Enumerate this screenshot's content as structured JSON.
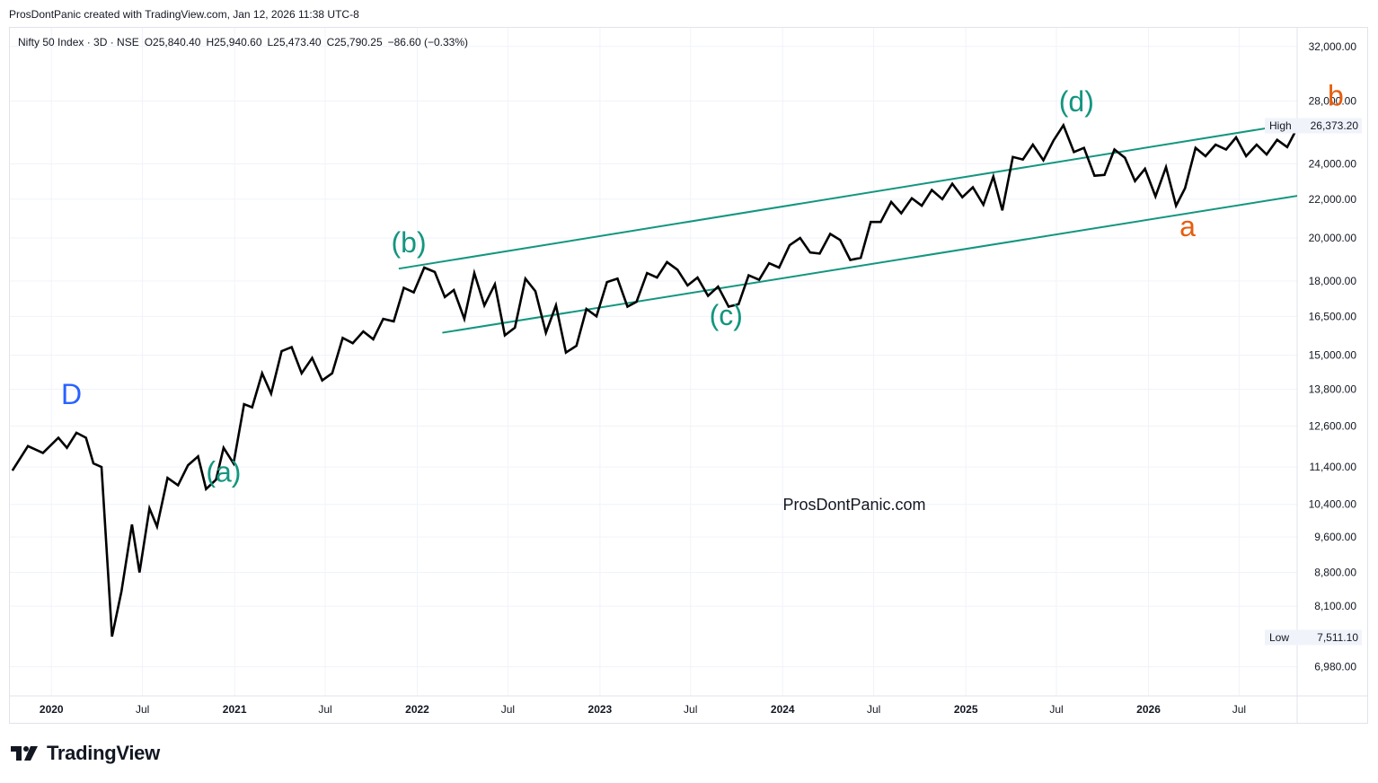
{
  "header": {
    "attribution": "ProsDontPanic created with TradingView.com, Jan 12, 2026 11:38 UTC-8"
  },
  "legend": {
    "symbol": "Nifty 50 Index · 3D · NSE",
    "open": "O25,840.40",
    "high": "H25,940.60",
    "low": "L25,473.40",
    "close": "C25,790.25",
    "change": "−86.60 (−0.33%)"
  },
  "watermark": "ProsDontPanic.com",
  "brand": {
    "name": "TradingView"
  },
  "colors": {
    "price": "#000000",
    "channel": "#13967f",
    "wave_teal": "#13967f",
    "wave_orange": "#e65d0e",
    "wave_blue": "#2962ff",
    "grid": "#f0f3fa"
  },
  "chart_data": {
    "type": "line",
    "title": "",
    "scale": "log",
    "ylim": [
      6500,
      33500
    ],
    "xlim": [
      "2019-10-10",
      "2026-10-25"
    ],
    "grid": true,
    "y_ticks": [
      "32,000.00",
      "28,000.00",
      "24,000.00",
      "22,000.00",
      "20,000.00",
      "18,000.00",
      "16,500.00",
      "15,000.00",
      "13,800.00",
      "12,600.00",
      "11,400.00",
      "10,400.00",
      "9,600.00",
      "8,800.00",
      "8,100.00",
      "6,980.00"
    ],
    "x_ticks": [
      {
        "label": "2020",
        "date": "2020-01-01",
        "bold": true
      },
      {
        "label": "Jul",
        "date": "2020-07-01",
        "bold": false
      },
      {
        "label": "2021",
        "date": "2021-01-01",
        "bold": true
      },
      {
        "label": "Jul",
        "date": "2021-07-01",
        "bold": false
      },
      {
        "label": "2022",
        "date": "2022-01-01",
        "bold": true
      },
      {
        "label": "Jul",
        "date": "2022-07-01",
        "bold": false
      },
      {
        "label": "2023",
        "date": "2023-01-01",
        "bold": true
      },
      {
        "label": "Jul",
        "date": "2023-07-01",
        "bold": false
      },
      {
        "label": "2024",
        "date": "2024-01-01",
        "bold": true
      },
      {
        "label": "Jul",
        "date": "2024-07-01",
        "bold": false
      },
      {
        "label": "2025",
        "date": "2025-01-01",
        "bold": true
      },
      {
        "label": "Jul",
        "date": "2025-07-01",
        "bold": false
      },
      {
        "label": "2026",
        "date": "2026-01-01",
        "bold": true
      },
      {
        "label": "Jul",
        "date": "2026-07-01",
        "bold": false
      }
    ],
    "high_marker": {
      "label": "High",
      "value": 26373.2,
      "text": "26,373.20"
    },
    "low_marker": {
      "label": "Low",
      "value": 7511.1,
      "text": "7,511.10"
    },
    "series": [
      {
        "points": [
          [
            "2019-10-15",
            11300
          ],
          [
            "2019-11-15",
            12000
          ],
          [
            "2019-12-15",
            11800
          ],
          [
            "2020-01-15",
            12250
          ],
          [
            "2020-02-01",
            11950
          ],
          [
            "2020-02-20",
            12400
          ],
          [
            "2020-03-10",
            12250
          ],
          [
            "2020-03-25",
            11500
          ],
          [
            "2020-04-10",
            11400
          ],
          [
            "2020-05-01",
            7520
          ],
          [
            "2020-05-20",
            8400
          ],
          [
            "2020-06-10",
            9900
          ],
          [
            "2020-06-25",
            8800
          ],
          [
            "2020-07-15",
            10300
          ],
          [
            "2020-07-30",
            9850
          ],
          [
            "2020-08-20",
            11100
          ],
          [
            "2020-09-10",
            10900
          ],
          [
            "2020-09-30",
            11450
          ],
          [
            "2020-10-20",
            11700
          ],
          [
            "2020-11-05",
            10800
          ],
          [
            "2020-11-25",
            11050
          ],
          [
            "2020-12-10",
            11950
          ],
          [
            "2020-12-30",
            11500
          ],
          [
            "2021-01-20",
            13300
          ],
          [
            "2021-02-05",
            13200
          ],
          [
            "2021-02-25",
            14350
          ],
          [
            "2021-03-15",
            13650
          ],
          [
            "2021-04-05",
            15150
          ],
          [
            "2021-04-25",
            15300
          ],
          [
            "2021-05-15",
            14350
          ],
          [
            "2021-06-05",
            14900
          ],
          [
            "2021-06-25",
            14100
          ],
          [
            "2021-07-15",
            14350
          ],
          [
            "2021-08-05",
            15650
          ],
          [
            "2021-08-25",
            15450
          ],
          [
            "2021-09-15",
            15900
          ],
          [
            "2021-10-05",
            15600
          ],
          [
            "2021-10-25",
            16400
          ],
          [
            "2021-11-15",
            16300
          ],
          [
            "2021-12-05",
            17700
          ],
          [
            "2021-12-25",
            17500
          ],
          [
            "2022-01-15",
            18600
          ],
          [
            "2022-02-05",
            18400
          ],
          [
            "2022-02-25",
            17300
          ],
          [
            "2022-03-15",
            17600
          ],
          [
            "2022-04-05",
            16400
          ],
          [
            "2022-04-25",
            18350
          ],
          [
            "2022-05-15",
            16950
          ],
          [
            "2022-06-05",
            17850
          ],
          [
            "2022-06-25",
            15750
          ],
          [
            "2022-07-15",
            16050
          ],
          [
            "2022-08-05",
            18100
          ],
          [
            "2022-08-25",
            17550
          ],
          [
            "2022-09-15",
            15850
          ],
          [
            "2022-10-05",
            16950
          ],
          [
            "2022-10-25",
            15100
          ],
          [
            "2022-11-15",
            15350
          ],
          [
            "2022-12-05",
            16800
          ],
          [
            "2022-12-25",
            16500
          ],
          [
            "2023-01-15",
            17950
          ],
          [
            "2023-02-05",
            18100
          ],
          [
            "2023-02-25",
            16900
          ],
          [
            "2023-03-15",
            17100
          ],
          [
            "2023-04-05",
            18350
          ],
          [
            "2023-04-25",
            18150
          ],
          [
            "2023-05-15",
            18850
          ],
          [
            "2023-06-05",
            18500
          ],
          [
            "2023-06-25",
            17800
          ],
          [
            "2023-07-15",
            18150
          ],
          [
            "2023-08-05",
            17350
          ],
          [
            "2023-08-25",
            17750
          ],
          [
            "2023-09-15",
            16900
          ],
          [
            "2023-10-05",
            17000
          ],
          [
            "2023-10-25",
            18250
          ],
          [
            "2023-11-15",
            18050
          ],
          [
            "2023-12-05",
            18800
          ],
          [
            "2023-12-25",
            18600
          ],
          [
            "2024-01-15",
            19650
          ],
          [
            "2024-02-05",
            20000
          ],
          [
            "2024-02-25",
            19300
          ],
          [
            "2024-03-15",
            19250
          ],
          [
            "2024-04-05",
            20200
          ],
          [
            "2024-04-25",
            19900
          ],
          [
            "2024-05-15",
            18950
          ],
          [
            "2024-06-05",
            19050
          ],
          [
            "2024-06-25",
            20800
          ],
          [
            "2024-07-15",
            20800
          ],
          [
            "2024-08-05",
            21850
          ],
          [
            "2024-08-25",
            21250
          ],
          [
            "2024-09-15",
            22050
          ],
          [
            "2024-10-05",
            21650
          ],
          [
            "2024-10-25",
            22500
          ],
          [
            "2024-11-15",
            22000
          ],
          [
            "2024-12-05",
            22850
          ],
          [
            "2024-12-25",
            22100
          ],
          [
            "2025-01-15",
            22650
          ],
          [
            "2025-02-05",
            21700
          ],
          [
            "2025-02-25",
            23250
          ],
          [
            "2025-03-15",
            21400
          ],
          [
            "2025-04-05",
            24400
          ],
          [
            "2025-04-25",
            24250
          ],
          [
            "2025-05-15",
            25150
          ],
          [
            "2025-06-05",
            24200
          ],
          [
            "2025-06-25",
            25400
          ],
          [
            "2025-07-15",
            26373
          ],
          [
            "2025-08-05",
            24700
          ],
          [
            "2025-08-25",
            24950
          ],
          [
            "2025-09-15",
            23300
          ],
          [
            "2025-10-05",
            23350
          ],
          [
            "2025-10-25",
            24850
          ],
          [
            "2025-11-15",
            24350
          ],
          [
            "2025-12-05",
            23000
          ],
          [
            "2025-12-25",
            23700
          ],
          [
            "2026-01-15",
            22150
          ],
          [
            "2026-02-05",
            23800
          ],
          [
            "2026-02-25",
            21650
          ],
          [
            "2026-03-15",
            22600
          ],
          [
            "2026-04-05",
            24950
          ],
          [
            "2026-04-25",
            24450
          ],
          [
            "2026-05-15",
            25150
          ],
          [
            "2026-06-05",
            24850
          ],
          [
            "2026-06-25",
            25600
          ],
          [
            "2026-07-15",
            24450
          ],
          [
            "2026-08-05",
            25150
          ],
          [
            "2026-08-25",
            24550
          ],
          [
            "2026-09-15",
            25450
          ],
          [
            "2026-10-05",
            25000
          ],
          [
            "2026-10-25",
            26200
          ],
          [
            "2026-11-15",
            25650
          ],
          [
            "2026-12-05",
            26300
          ],
          [
            "2026-12-25",
            26300
          ],
          [
            "2027-01-15",
            25790
          ]
        ]
      }
    ],
    "channels": [
      {
        "from": [
          "2021-11-25",
          18550
        ],
        "to": [
          "2028-01-20",
          29000
        ]
      },
      {
        "from": [
          "2022-02-20",
          15850
        ],
        "to": [
          "2028-05-15",
          24800
        ]
      }
    ],
    "annotations": [
      {
        "text": "D",
        "date": "2020-02-10",
        "value": 13300,
        "color": "#2962ff"
      },
      {
        "text": "(a)",
        "date": "2020-12-10",
        "value": 11000,
        "color": "#13967f"
      },
      {
        "text": "(b)",
        "date": "2021-12-15",
        "value": 19300,
        "color": "#13967f"
      },
      {
        "text": "(c)",
        "date": "2023-09-10",
        "value": 16150,
        "color": "#13967f"
      },
      {
        "text": "(d)",
        "date": "2025-08-10",
        "value": 27300,
        "color": "#13967f"
      },
      {
        "text": "a",
        "date": "2026-03-20",
        "value": 20100,
        "color": "#e65d0e"
      },
      {
        "text": "b",
        "date": "2027-01-10",
        "value": 27700,
        "color": "#e65d0e"
      }
    ]
  }
}
